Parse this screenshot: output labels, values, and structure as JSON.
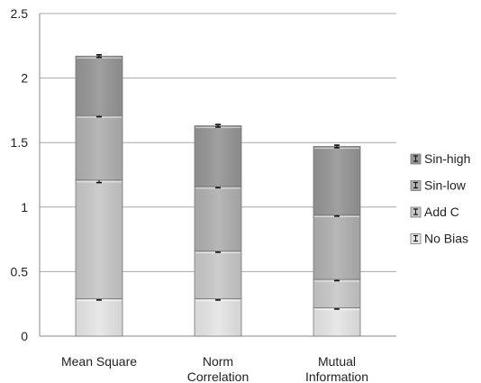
{
  "chart_data": {
    "type": "bar",
    "stacked": true,
    "categories": [
      "Mean Square",
      "Norm Correlation",
      "Mutual Information"
    ],
    "series": [
      {
        "name": "No Bias",
        "color": "#e6e6e6",
        "values": [
          0.29,
          0.29,
          0.22
        ],
        "errors": [
          0.01,
          0.01,
          0.01
        ]
      },
      {
        "name": "Add C",
        "color": "#c8c8c8",
        "values": [
          0.92,
          0.37,
          0.22
        ],
        "errors": [
          0.02,
          0.01,
          0.01
        ]
      },
      {
        "name": "Sin-low",
        "color": "#b0b0b0",
        "values": [
          0.5,
          0.5,
          0.5
        ],
        "errors": [
          0.01,
          0.01,
          0.01
        ]
      },
      {
        "name": "Sin-high",
        "color": "#969696",
        "values": [
          0.46,
          0.47,
          0.53
        ],
        "errors": [
          0.01,
          0.01,
          0.01
        ]
      }
    ],
    "ylim": [
      0,
      2.5
    ],
    "yticks": [
      0,
      0.5,
      1,
      1.5,
      2,
      2.5
    ],
    "ytick_labels": [
      "0",
      "0.5",
      "1",
      "1.5",
      "2",
      "2.5"
    ],
    "grid": true,
    "legend_position": "right",
    "legend_order": [
      "Sin-high",
      "Sin-low",
      "Add C",
      "No Bias"
    ],
    "title": "",
    "xlabel": "",
    "ylabel": ""
  }
}
